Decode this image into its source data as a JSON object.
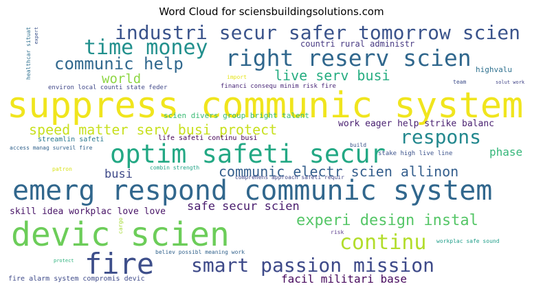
{
  "title": "Word Cloud for sciensbuildingsolutions.com",
  "words": [
    {
      "text": "suppress communic system",
      "color": "#f0e51d"
    },
    {
      "text": "emerg respond communic system",
      "color": "#31678d"
    },
    {
      "text": "devic scien",
      "color": "#6ccd59"
    },
    {
      "text": "optim safeti secur",
      "color": "#23a884"
    },
    {
      "text": "fire",
      "color": "#3d4e8a"
    },
    {
      "text": "right reserv scien",
      "color": "#30678d"
    },
    {
      "text": "industri secur safer tomorrow scien",
      "color": "#3a538b"
    },
    {
      "text": "smart passion mission",
      "color": "#3e4a89"
    },
    {
      "text": "time money",
      "color": "#22908d"
    },
    {
      "text": "continu",
      "color": "#b2dd2c"
    },
    {
      "text": "respons",
      "color": "#23888e"
    },
    {
      "text": "communic help",
      "color": "#31688e"
    },
    {
      "text": "speed matter serv busi protect",
      "color": "#c8e020"
    },
    {
      "text": "experi design instal",
      "color": "#55c667"
    },
    {
      "text": "communic electr scien allinon",
      "color": "#355f8d"
    },
    {
      "text": "live serv busi",
      "color": "#26ad81"
    },
    {
      "text": "world",
      "color": "#8ed645"
    },
    {
      "text": "safe secur scien",
      "color": "#481b6d"
    },
    {
      "text": "facil militari base",
      "color": "#46085c"
    },
    {
      "text": "busi",
      "color": "#3e4989"
    },
    {
      "text": "phase",
      "color": "#34b679"
    },
    {
      "text": "skill idea workplac love love",
      "color": "#481467"
    },
    {
      "text": "work eager help strike balanc",
      "color": "#481f70"
    },
    {
      "text": "countri rural administr",
      "color": "#453781"
    },
    {
      "text": "highvalu",
      "color": "#2d708e"
    },
    {
      "text": "scien divers group bright talent",
      "color": "#3bbb75"
    },
    {
      "text": "environ local counti state feder",
      "color": "#3f4788"
    },
    {
      "text": "financi consequ minim risk fire",
      "color": "#482677"
    },
    {
      "text": "streamlin safeti",
      "color": "#2a788e"
    },
    {
      "text": "life safeti continu busi",
      "color": "#440154"
    },
    {
      "text": "access manag surveil fire",
      "color": "#33638d"
    },
    {
      "text": "stake high live line",
      "color": "#3b528b"
    },
    {
      "text": "combin strength",
      "color": "#20a386"
    },
    {
      "text": "comprehens approach safeti requir",
      "color": "#404588"
    },
    {
      "text": "believ possibl meaning work",
      "color": "#33638d"
    },
    {
      "text": "workplac safe sound",
      "color": "#1f9e89"
    },
    {
      "text": "fire alarm system compromis devic",
      "color": "#3e4a89"
    },
    {
      "text": "import",
      "color": "#e5e419"
    },
    {
      "text": "team",
      "color": "#3d4d8a"
    },
    {
      "text": "solut work",
      "color": "#414487"
    },
    {
      "text": "build",
      "color": "#3b528b"
    },
    {
      "text": "patron",
      "color": "#d8e219"
    },
    {
      "text": "risk",
      "color": "#5c3c8e"
    },
    {
      "text": "protect",
      "color": "#2db27d"
    },
    {
      "text": "cargo",
      "color": "#a5db36"
    },
    {
      "text": "healthcar situat",
      "color": "#2e6f8e"
    },
    {
      "text": "expert",
      "color": "#3b528b"
    }
  ]
}
